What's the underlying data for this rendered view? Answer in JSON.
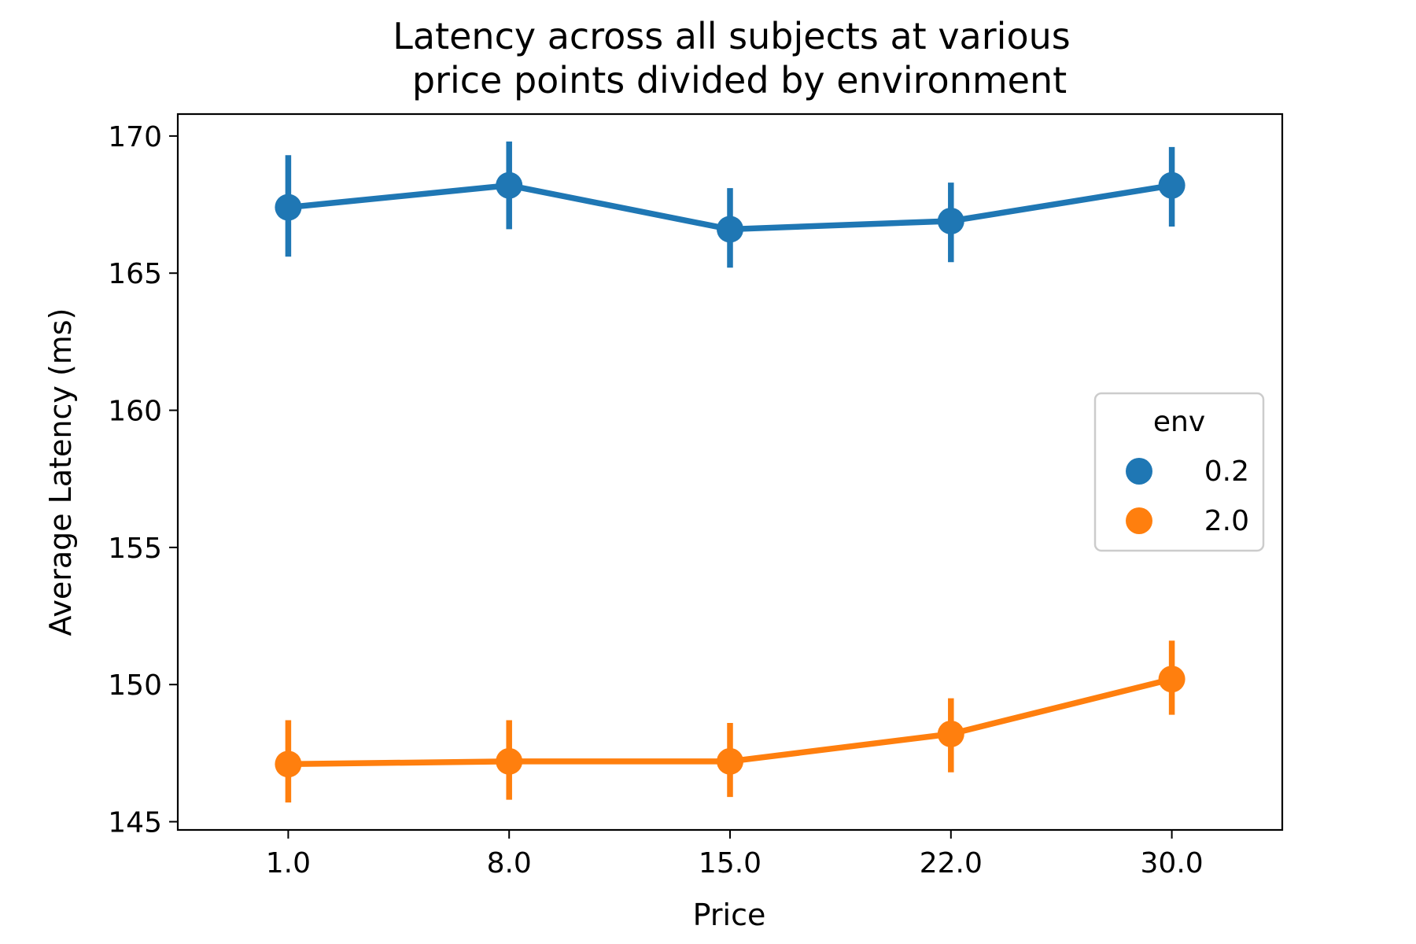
{
  "chart_data": {
    "type": "line",
    "title_lines": [
      "Latency across all subjects at various",
      "price points divided by environment"
    ],
    "xlabel": "Price",
    "ylabel": "Average Latency (ms)",
    "categories": [
      "1.0",
      "8.0",
      "15.0",
      "22.0",
      "30.0"
    ],
    "ylim": [
      144.7,
      170.8
    ],
    "yticks": [
      145,
      150,
      155,
      160,
      165,
      170
    ],
    "grid": false,
    "legend": {
      "title": "env",
      "position": "center-right"
    },
    "series": [
      {
        "name": "0.2",
        "color": "#1f77b4",
        "values": [
          167.4,
          168.2,
          166.6,
          166.9,
          168.2
        ],
        "err_low": [
          165.6,
          166.6,
          165.2,
          165.4,
          166.7
        ],
        "err_high": [
          169.3,
          169.8,
          168.1,
          168.3,
          169.6
        ]
      },
      {
        "name": "2.0",
        "color": "#ff7f0e",
        "values": [
          147.1,
          147.2,
          147.2,
          148.2,
          150.2
        ],
        "err_low": [
          145.7,
          145.8,
          145.9,
          146.8,
          148.9
        ],
        "err_high": [
          148.7,
          148.7,
          148.6,
          149.5,
          151.6
        ]
      }
    ]
  }
}
